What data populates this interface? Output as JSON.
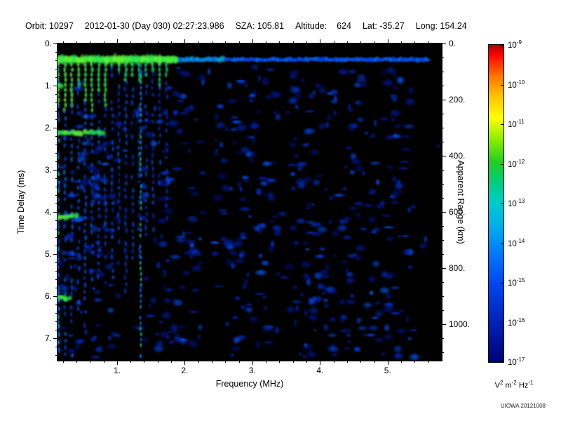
{
  "header": {
    "parts": [
      "Orbit: 10297",
      "2012-01-30 (Day 030) 02:27:23.986",
      "SZA: 105.81",
      "Altitude:    624",
      "Lat: -35.27",
      "Long: 154.24"
    ]
  },
  "footer": {
    "credit": "UIOWA 20121008"
  },
  "chart_data": {
    "type": "heatmap",
    "title": "",
    "xlabel": "Frequency (MHz)",
    "ylabel": "Time Delay (ms)",
    "ylabel_right": "Apparent Range (km)",
    "xlim": [
      0.12,
      5.8
    ],
    "ylim_ms": [
      0,
      7.53
    ],
    "right_lim_km": [
      0,
      1130
    ],
    "x_tick_values": [
      1,
      2,
      3,
      4,
      5
    ],
    "x_tick_labels": [
      "1.",
      "2.",
      "3.",
      "4.",
      "5."
    ],
    "y_tick_values": [
      0,
      1,
      2,
      3,
      4,
      5,
      6,
      7
    ],
    "y_tick_labels": [
      "0.",
      "1.",
      "2.",
      "3.",
      "4.",
      "5.",
      "6.",
      "7."
    ],
    "right_tick_values": [
      0,
      200,
      400,
      600,
      800,
      1000
    ],
    "right_tick_labels": [
      "0.",
      "200.",
      "400.",
      "600.",
      "800.",
      "1000."
    ],
    "colorbar": {
      "tick_base": "10",
      "tick_exponents": [
        "-9",
        "-10",
        "-11",
        "-12",
        "-13",
        "-14",
        "-15",
        "-16",
        "-17"
      ],
      "unit_parts": [
        {
          "base": "V",
          "exp": "2"
        },
        {
          "base": "m",
          "exp": "-2"
        },
        {
          "base": "Hz",
          "exp": "-1"
        }
      ],
      "gradient": [
        {
          "pos": 0.0,
          "color": "#aa0000"
        },
        {
          "pos": 0.03,
          "color": "#ff0000"
        },
        {
          "pos": 0.1,
          "color": "#ff7700"
        },
        {
          "pos": 0.17,
          "color": "#ffcc00"
        },
        {
          "pos": 0.23,
          "color": "#ffff00"
        },
        {
          "pos": 0.3,
          "color": "#88ee00"
        },
        {
          "pos": 0.37,
          "color": "#22cc22"
        },
        {
          "pos": 0.44,
          "color": "#00cc88"
        },
        {
          "pos": 0.5,
          "color": "#00cccc"
        },
        {
          "pos": 0.58,
          "color": "#00aaee"
        },
        {
          "pos": 0.66,
          "color": "#0077ff"
        },
        {
          "pos": 0.76,
          "color": "#0044ee"
        },
        {
          "pos": 0.87,
          "color": "#0022bb"
        },
        {
          "pos": 1.0,
          "color": "#000077"
        }
      ]
    },
    "features": [
      {
        "name": "surface-echo-band",
        "time_delay_ms": 0.38,
        "freq_mhz": [
          0.12,
          5.6
        ],
        "description": "bright horizontal first-echo band, green at low frequencies fading to blue at high frequencies"
      },
      {
        "name": "plasma-oscillation-stripes",
        "freq_mhz": [
          0.13,
          1.78
        ],
        "spacing_mhz": 0.1,
        "time_delay_ms": [
          0.3,
          7.5
        ],
        "description": "periodic vertical stripes with bright green heads near the top fading to blue with depth"
      },
      {
        "name": "bright-vertical-line",
        "freq_mhz": 1.35,
        "time_delay_ms": [
          0.3,
          7.5
        ],
        "description": "narrow cyan-green vertical line spanning the full time-delay range"
      },
      {
        "name": "echo-cluster",
        "freq_mhz": [
          0.12,
          0.8
        ],
        "time_delay_ms": 2.12
      },
      {
        "name": "echo-cluster",
        "freq_mhz": [
          0.12,
          0.42
        ],
        "time_delay_ms": 4.1
      },
      {
        "name": "echo-cluster",
        "freq_mhz": [
          0.12,
          0.3
        ],
        "time_delay_ms": 6.05
      },
      {
        "name": "echo-cluster",
        "freq_mhz": [
          0.12,
          0.2
        ],
        "time_delay_ms": 1.0
      },
      {
        "name": "dark-gap",
        "freq_mhz": [
          1.02,
          1.3
        ]
      },
      {
        "name": "dark-gap",
        "freq_mhz": [
          2.28,
          2.46
        ]
      },
      {
        "name": "dark-gap",
        "freq_mhz": [
          3.42,
          3.58
        ]
      },
      {
        "name": "diffuse-scatter",
        "freq_mhz": [
          0.12,
          5.45
        ],
        "time_delay_ms": [
          0.5,
          7.5
        ],
        "description": "scattered faint blue blobs throughout the plot"
      }
    ],
    "render_hints": {
      "seed": 20121008,
      "speckle_count": 780,
      "colormap": [
        {
          "pos": 0.0,
          "color": "#000048"
        },
        {
          "pos": 0.15,
          "color": "#001890"
        },
        {
          "pos": 0.3,
          "color": "#0030d8"
        },
        {
          "pos": 0.45,
          "color": "#0058ff"
        },
        {
          "pos": 0.58,
          "color": "#0090ff"
        },
        {
          "pos": 0.68,
          "color": "#00c8c8"
        },
        {
          "pos": 0.78,
          "color": "#00e080"
        },
        {
          "pos": 0.88,
          "color": "#38f048"
        },
        {
          "pos": 1.0,
          "color": "#90ff20"
        }
      ]
    }
  }
}
